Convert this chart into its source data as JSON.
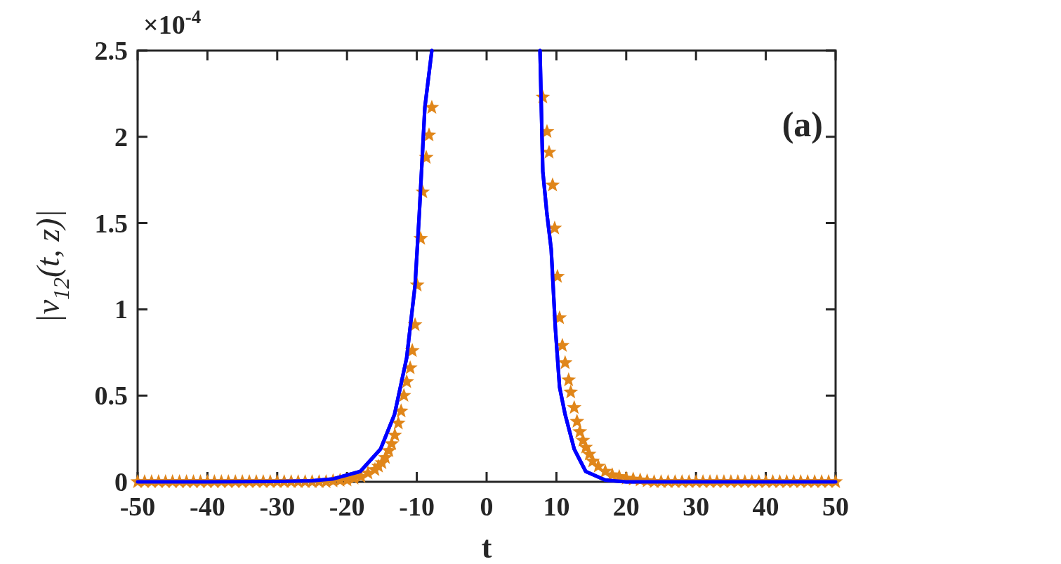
{
  "chart_data": {
    "type": "line",
    "xlabel": "t",
    "ylabel": "|v$_{12}$(t, z)|",
    "annotations": [
      "(a)",
      "×10$^{-4}$"
    ],
    "xlim": [
      -50,
      50
    ],
    "xticks": [
      -50,
      -40,
      -30,
      -20,
      -10,
      0,
      10,
      20,
      30,
      40,
      50
    ],
    "ylim": [
      0,
      2.5
    ],
    "yticks": [
      0,
      0.5,
      1,
      1.5,
      2,
      2.5
    ],
    "grid": false,
    "legend": false,
    "series": [
      {
        "type": "line",
        "color": "#0000ff",
        "marker": "none",
        "line_style": "solid",
        "x": [
          -50,
          -40,
          -30,
          -25,
          -22.1,
          -18.1,
          -15.2,
          -13.2,
          -11.45,
          -10.25,
          -9.65,
          -8.85,
          -7.85,
          0,
          7.65,
          8.05,
          8.65,
          9.25,
          9.85,
          10.45,
          11.25,
          12.55,
          14.2,
          17,
          20,
          30,
          40,
          50
        ],
        "values": [
          0,
          0,
          0.002,
          0.006,
          0.016,
          0.06,
          0.19,
          0.39,
          0.72,
          1.14,
          1.55,
          2.17,
          2.5,
          null,
          2.5,
          1.8,
          1.55,
          1.35,
          0.89,
          0.55,
          0.39,
          0.19,
          0.06,
          0.01,
          0,
          0,
          0,
          0
        ]
      },
      {
        "type": "scatter",
        "color": "#e0861a",
        "marker": "star",
        "x": [
          -50,
          -49,
          -48,
          -47,
          -46,
          -45,
          -44,
          -43,
          -42,
          -41,
          -40,
          -39,
          -38,
          -37,
          -36,
          -35,
          -34,
          -33,
          -32,
          -31,
          -30,
          -29,
          -28,
          -27,
          -26,
          -25,
          -24,
          -23,
          -22,
          -21,
          -20,
          -19,
          -18,
          -17,
          -16,
          -15.5,
          -15,
          -14.5,
          -14,
          -13.6,
          -13.15,
          -12.65,
          -12.25,
          -11.85,
          -11.45,
          -10.95,
          -10.65,
          -10.25,
          -9.95,
          -9.45,
          -9.15,
          -8.65,
          -8.25,
          -7.85,
          8.05,
          8.65,
          8.95,
          9.45,
          9.75,
          10.15,
          10.45,
          10.85,
          11.25,
          11.75,
          12.05,
          12.55,
          12.95,
          13.35,
          13.8,
          14.2,
          14.7,
          15.2,
          16,
          17,
          18,
          19,
          20,
          21,
          22,
          23,
          24,
          25,
          26,
          27,
          28,
          29,
          30,
          31,
          32,
          33,
          34,
          35,
          36,
          37,
          38,
          39,
          40,
          41,
          42,
          43,
          44,
          45,
          46,
          47,
          48,
          49,
          50
        ],
        "values": [
          0,
          0,
          0,
          0,
          0,
          0,
          0,
          0,
          0,
          0,
          0,
          0,
          0,
          0,
          0,
          0,
          0,
          0,
          0,
          0,
          0,
          0,
          0,
          0,
          0,
          0,
          0,
          0,
          0.005,
          0.008,
          0.01,
          0.02,
          0.03,
          0.05,
          0.07,
          0.09,
          0.11,
          0.14,
          0.18,
          0.22,
          0.27,
          0.34,
          0.41,
          0.5,
          0.58,
          0.66,
          0.76,
          0.91,
          1.14,
          1.41,
          1.68,
          1.88,
          2.01,
          2.17,
          2.23,
          2.03,
          1.91,
          1.72,
          1.47,
          1.19,
          0.95,
          0.79,
          0.69,
          0.59,
          0.52,
          0.43,
          0.35,
          0.29,
          0.24,
          0.2,
          0.16,
          0.12,
          0.09,
          0.06,
          0.04,
          0.03,
          0.02,
          0.015,
          0.01,
          0.005,
          0,
          0,
          0,
          0,
          0,
          0,
          0,
          0,
          0,
          0,
          0,
          0,
          0,
          0,
          0,
          0,
          0,
          0,
          0,
          0,
          0,
          0,
          0,
          0,
          0,
          0,
          0
        ]
      }
    ]
  }
}
